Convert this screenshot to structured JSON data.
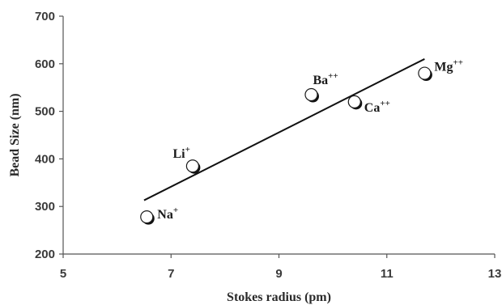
{
  "chart_data": {
    "type": "scatter",
    "title": "",
    "xlabel": "Stokes radius (pm)",
    "ylabel": "Bead Size (nm)",
    "xlim": [
      5,
      13
    ],
    "ylim": [
      200,
      700
    ],
    "x_ticks": [
      "5",
      "7",
      "9",
      "11",
      "13"
    ],
    "y_ticks": [
      "200",
      "300",
      "400",
      "500",
      "600",
      "700"
    ],
    "grid": false,
    "legend": "none",
    "series": [
      {
        "points": [
          {
            "label": "Na",
            "charge": "+",
            "x": 6.55,
            "y": 278
          },
          {
            "label": "Li",
            "charge": "+",
            "x": 7.4,
            "y": 385
          },
          {
            "label": "Ba",
            "charge": "++",
            "x": 9.6,
            "y": 535
          },
          {
            "label": "Ca",
            "charge": "++",
            "x": 10.4,
            "y": 520
          },
          {
            "label": "Mg",
            "charge": "++",
            "x": 11.7,
            "y": 580
          }
        ]
      }
    ],
    "trendline": {
      "x": [
        6.5,
        11.7
      ],
      "y": [
        313,
        610
      ]
    },
    "colors": {
      "axis": "#555555",
      "marker_fill": "#ffffff",
      "marker_stroke": "#1a1a1a",
      "line": "#111111"
    }
  }
}
